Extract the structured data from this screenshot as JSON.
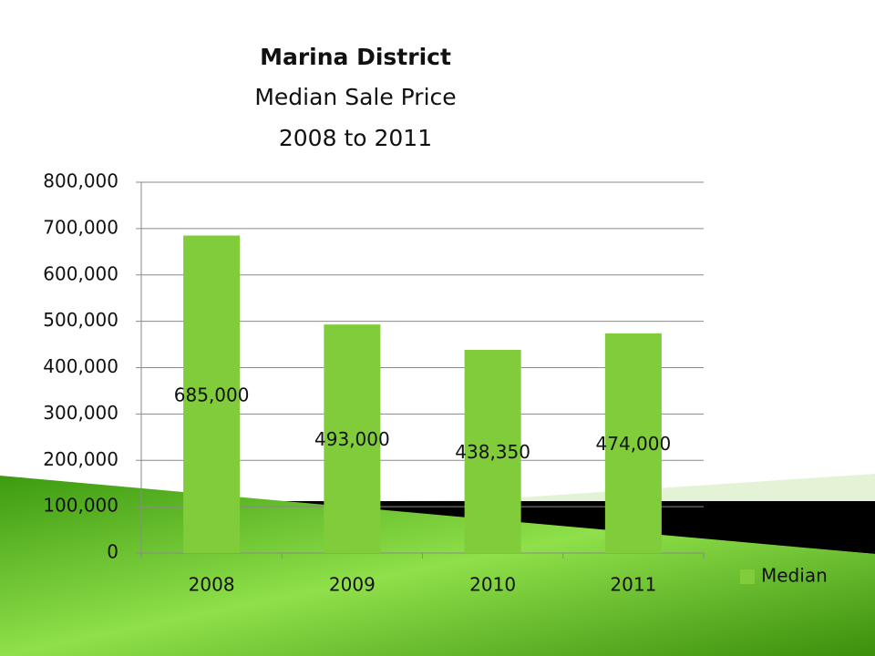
{
  "chart_data": {
    "type": "bar",
    "title": "Marina District",
    "subtitle": [
      "Median Sale Price",
      "2008 to 2011"
    ],
    "categories": [
      "2008",
      "2009",
      "2010",
      "2011"
    ],
    "series": [
      {
        "name": "Median",
        "color": "#80cc3a",
        "values": [
          685000,
          493000,
          438350,
          474000
        ],
        "value_labels": [
          "685,000",
          "493,000",
          "438,350",
          "474,000"
        ]
      }
    ],
    "ylim": [
      0,
      800000
    ],
    "yticks": [
      0,
      {
        "value": 100000,
        "label": "100,000"
      },
      {
        "value": 200000,
        "label": "200,000"
      },
      {
        "value": 300000,
        "label": "300,000"
      },
      {
        "value": 400000,
        "label": "400,000"
      },
      {
        "value": 500000,
        "label": "500,000"
      },
      {
        "value": 600000,
        "label": "600,000"
      },
      {
        "value": 700000,
        "label": "700,000"
      },
      {
        "value": 800000,
        "label": "800,000"
      }
    ],
    "grid": true,
    "legend": "right"
  }
}
